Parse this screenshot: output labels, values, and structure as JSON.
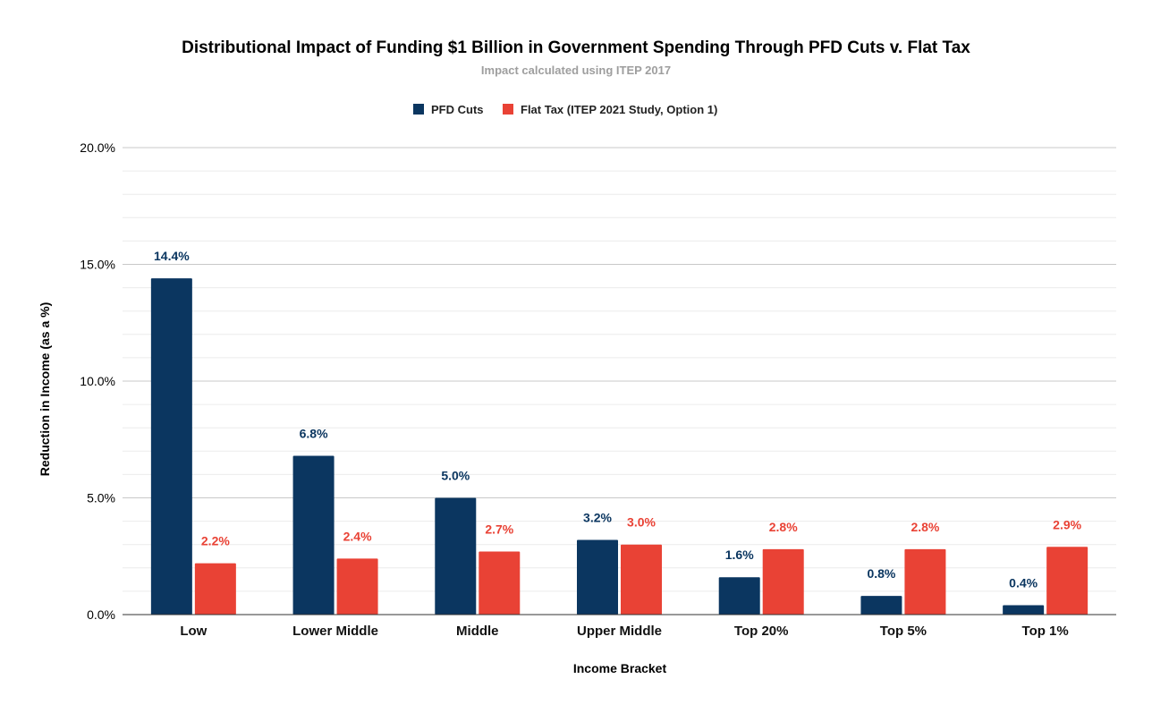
{
  "chart_data": {
    "type": "bar",
    "title": "Distributional Impact of Funding $1 Billion in Government Spending Through PFD Cuts v. Flat Tax",
    "subtitle": "Impact calculated using ITEP 2017",
    "xlabel": "Income Bracket",
    "ylabel": "Reduction in Income (as a %)",
    "categories": [
      "Low",
      "Lower Middle",
      "Middle",
      "Upper Middle",
      "Top 20%",
      "Top 5%",
      "Top 1%"
    ],
    "series": [
      {
        "name": "PFD Cuts",
        "color": "#0b3660",
        "values": [
          14.4,
          6.8,
          5.0,
          3.2,
          1.6,
          0.8,
          0.4
        ],
        "labels": [
          "14.4%",
          "6.8%",
          "5.0%",
          "3.2%",
          "1.6%",
          "0.8%",
          "0.4%"
        ]
      },
      {
        "name": "Flat Tax (ITEP 2021 Study, Option 1)",
        "color": "#e94235",
        "values": [
          2.2,
          2.4,
          2.7,
          3.0,
          2.8,
          2.8,
          2.9
        ],
        "labels": [
          "2.2%",
          "2.4%",
          "2.7%",
          "3.0%",
          "2.8%",
          "2.8%",
          "2.9%"
        ]
      }
    ],
    "ylim": [
      0,
      20
    ],
    "yticks": [
      0,
      5,
      10,
      15,
      20
    ],
    "ytick_labels": [
      "0.0%",
      "5.0%",
      "10.0%",
      "15.0%",
      "20.0%"
    ],
    "grid": true,
    "legend_position": "top-center"
  }
}
